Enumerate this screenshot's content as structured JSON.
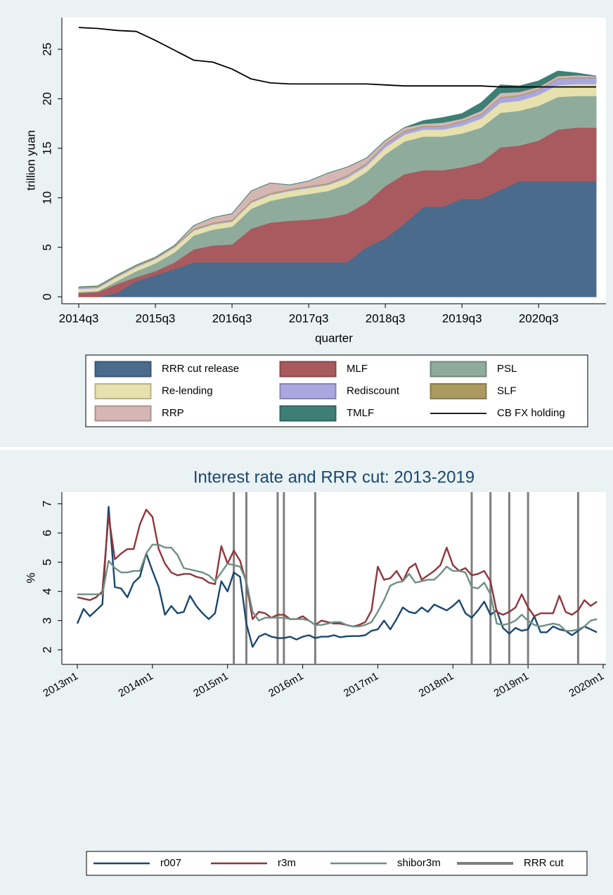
{
  "chart_data": [
    {
      "type": "area",
      "stacked": true,
      "ylabel": "trillion yuan",
      "xlabel": "quarter",
      "x": [
        "2014q3",
        "2014q4",
        "2015q1",
        "2015q2",
        "2015q3",
        "2015q4",
        "2016q1",
        "2016q2",
        "2016q3",
        "2016q4",
        "2017q1",
        "2017q2",
        "2017q3",
        "2017q4",
        "2018q1",
        "2018q2",
        "2018q3",
        "2018q4",
        "2019q1",
        "2019q2",
        "2019q3",
        "2019q4",
        "2020q1",
        "2020q2",
        "2020q3",
        "2020q4",
        "2021q1",
        "2021q2"
      ],
      "xticks": [
        "2014q3",
        "2015q3",
        "2016q3",
        "2017q3",
        "2018q3",
        "2019q3",
        "2020q3"
      ],
      "ylim": [
        -0.7,
        28.2
      ],
      "yticks": [
        0,
        5,
        10,
        15,
        20,
        25
      ],
      "grid": false,
      "legend": "bottom",
      "legend_columns": 3,
      "series": [
        {
          "name": "RRR cut release",
          "color": "#4a6b8c",
          "values": [
            0,
            0,
            0.4,
            1.6,
            2.2,
            2.8,
            3.5,
            3.5,
            3.5,
            3.5,
            3.5,
            3.5,
            3.5,
            3.5,
            3.5,
            5.0,
            5.9,
            7.4,
            9.1,
            9.1,
            9.9,
            9.9,
            10.8,
            11.7,
            11.7,
            11.7,
            11.7,
            11.7
          ]
        },
        {
          "name": "MLF",
          "color": "#a85a5e",
          "values": [
            0.4,
            0.5,
            0.9,
            0.4,
            0.4,
            0.7,
            1.3,
            1.7,
            1.8,
            3.4,
            4.0,
            4.2,
            4.3,
            4.5,
            4.9,
            4.5,
            5.3,
            5.0,
            3.7,
            3.7,
            3.2,
            3.7,
            4.3,
            3.6,
            4.1,
            5.2,
            5.4,
            5.4
          ]
        },
        {
          "name": "PSL",
          "color": "#8fab9c",
          "values": [
            0.1,
            0.1,
            0.3,
            0.6,
            0.8,
            1.0,
            1.4,
            1.6,
            1.8,
            2.0,
            2.2,
            2.4,
            2.6,
            2.7,
            3.0,
            3.1,
            3.2,
            3.3,
            3.4,
            3.4,
            3.4,
            3.5,
            3.5,
            3.5,
            3.5,
            3.3,
            3.2,
            3.2
          ]
        },
        {
          "name": "Re-lending",
          "color": "#e6e1ad",
          "values": [
            0.3,
            0.3,
            0.4,
            0.4,
            0.4,
            0.5,
            0.5,
            0.5,
            0.5,
            0.6,
            0.6,
            0.6,
            0.6,
            0.6,
            0.6,
            0.6,
            0.7,
            0.7,
            0.7,
            0.7,
            0.8,
            0.9,
            1.0,
            1.0,
            1.1,
            1.2,
            1.2,
            1.2
          ]
        },
        {
          "name": "Rediscount",
          "color": "#aaa6e0",
          "values": [
            0.1,
            0.1,
            0.1,
            0.1,
            0.1,
            0.1,
            0.1,
            0.1,
            0.1,
            0.1,
            0.1,
            0.1,
            0.1,
            0.1,
            0.2,
            0.2,
            0.3,
            0.3,
            0.3,
            0.3,
            0.4,
            0.4,
            0.5,
            0.5,
            0.5,
            0.6,
            0.6,
            0.6
          ]
        },
        {
          "name": "SLF",
          "color": "#ab9b60",
          "values": [
            0.1,
            0.1,
            0.1,
            0.1,
            0.1,
            0.1,
            0.1,
            0.1,
            0.1,
            0.1,
            0.1,
            0.1,
            0.1,
            0.1,
            0.1,
            0.1,
            0.1,
            0.1,
            0.1,
            0.1,
            0.1,
            0.1,
            0.1,
            0.1,
            0.1,
            0.1,
            0.1,
            0.1
          ]
        },
        {
          "name": "RRP",
          "color": "#d5b6b2",
          "values": [
            0,
            0,
            0,
            0,
            0,
            0,
            0.3,
            0.5,
            0.6,
            1.0,
            1.0,
            0.4,
            0.5,
            1.0,
            0.8,
            0.5,
            0.3,
            0.3,
            0.2,
            0.3,
            0.2,
            0.3,
            0.4,
            0.3,
            0.2,
            0.2,
            0.2,
            0.1
          ]
        },
        {
          "name": "TMLF",
          "color": "#3d7f75",
          "values": [
            0,
            0,
            0,
            0,
            0,
            0,
            0,
            0,
            0,
            0,
            0,
            0,
            0,
            0,
            0,
            0,
            0,
            0,
            0.3,
            0.5,
            0.5,
            0.8,
            0.8,
            0.6,
            0.6,
            0.5,
            0.2,
            0
          ]
        },
        {
          "name": "CB FX holding",
          "type": "line",
          "color": "#000000",
          "values": [
            27.2,
            27.1,
            26.9,
            26.8,
            25.9,
            24.9,
            23.9,
            23.7,
            23.0,
            22.0,
            21.6,
            21.5,
            21.5,
            21.5,
            21.5,
            21.5,
            21.4,
            21.3,
            21.3,
            21.3,
            21.3,
            21.3,
            21.2,
            21.2,
            21.2,
            21.2,
            21.2,
            21.2
          ]
        }
      ]
    },
    {
      "type": "line",
      "title": "Interest rate and RRR cut: 2013-2019",
      "ylabel": "%",
      "x": [
        "2013m1",
        "2013m2",
        "2013m3",
        "2013m4",
        "2013m5",
        "2013m6",
        "2013m7",
        "2013m8",
        "2013m9",
        "2013m10",
        "2013m11",
        "2013m12",
        "2014m1",
        "2014m2",
        "2014m3",
        "2014m4",
        "2014m5",
        "2014m6",
        "2014m7",
        "2014m8",
        "2014m9",
        "2014m10",
        "2014m11",
        "2014m12",
        "2015m1",
        "2015m2",
        "2015m3",
        "2015m4",
        "2015m5",
        "2015m6",
        "2015m7",
        "2015m8",
        "2015m9",
        "2015m10",
        "2015m11",
        "2015m12",
        "2016m1",
        "2016m2",
        "2016m3",
        "2016m4",
        "2016m5",
        "2016m6",
        "2016m7",
        "2016m8",
        "2016m9",
        "2016m10",
        "2016m11",
        "2016m12",
        "2017m1",
        "2017m2",
        "2017m3",
        "2017m4",
        "2017m5",
        "2017m6",
        "2017m7",
        "2017m8",
        "2017m9",
        "2017m10",
        "2017m11",
        "2017m12",
        "2018m1",
        "2018m2",
        "2018m3",
        "2018m4",
        "2018m5",
        "2018m6",
        "2018m7",
        "2018m8",
        "2018m9",
        "2018m10",
        "2018m11",
        "2018m12",
        "2019m1",
        "2019m2",
        "2019m3",
        "2019m4",
        "2019m5",
        "2019m6",
        "2019m7",
        "2019m8",
        "2019m9",
        "2019m10",
        "2019m11",
        "2019m12"
      ],
      "xticks": [
        "2013m1",
        "2014m1",
        "2015m1",
        "2016m1",
        "2017m1",
        "2018m1",
        "2019m1",
        "2020m1"
      ],
      "ylim": [
        1.5,
        7.4
      ],
      "yticks": [
        2,
        3,
        4,
        5,
        6,
        7
      ],
      "grid": false,
      "legend": "bottom",
      "legend_columns": 4,
      "series": [
        {
          "name": "r007",
          "color": "#1a476f",
          "values": [
            2.9,
            3.4,
            3.15,
            3.35,
            3.55,
            6.9,
            4.15,
            4.1,
            3.8,
            4.3,
            4.5,
            5.3,
            4.7,
            4.15,
            3.2,
            3.5,
            3.25,
            3.3,
            3.85,
            3.5,
            3.25,
            3.05,
            3.25,
            4.35,
            4.0,
            4.65,
            4.5,
            2.9,
            2.1,
            2.45,
            2.55,
            2.45,
            2.4,
            2.4,
            2.45,
            2.35,
            2.45,
            2.5,
            2.4,
            2.45,
            2.45,
            2.5,
            2.43,
            2.46,
            2.47,
            2.47,
            2.5,
            2.65,
            2.7,
            3.0,
            2.7,
            3.05,
            3.45,
            3.3,
            3.25,
            3.45,
            3.3,
            3.55,
            3.45,
            3.35,
            3.5,
            3.7,
            3.25,
            3.1,
            3.35,
            3.65,
            3.2,
            3.35,
            2.75,
            2.55,
            2.75,
            2.65,
            2.7,
            3.15,
            2.6,
            2.6,
            2.8,
            2.7,
            2.65,
            2.5,
            2.65,
            2.8,
            2.7,
            2.6
          ]
        },
        {
          "name": "r3m",
          "color": "#90353b",
          "values": [
            3.8,
            3.75,
            3.7,
            3.8,
            4.0,
            6.6,
            5.1,
            5.3,
            5.45,
            5.45,
            6.3,
            6.8,
            6.55,
            5.45,
            4.95,
            4.65,
            4.55,
            4.6,
            4.6,
            4.5,
            4.45,
            4.3,
            4.25,
            5.55,
            4.95,
            5.4,
            5.05,
            4.3,
            3.05,
            3.3,
            3.25,
            3.1,
            3.2,
            3.2,
            3.05,
            3.05,
            3.15,
            3.0,
            2.85,
            3.0,
            2.95,
            2.9,
            2.9,
            2.85,
            2.8,
            2.85,
            2.95,
            3.35,
            4.85,
            4.4,
            4.45,
            4.7,
            4.35,
            4.8,
            4.95,
            4.4,
            4.55,
            4.7,
            4.9,
            5.5,
            4.9,
            4.7,
            4.8,
            4.55,
            4.6,
            4.7,
            4.35,
            3.3,
            3.2,
            3.3,
            3.45,
            3.9,
            3.45,
            3.15,
            3.25,
            3.25,
            3.25,
            3.85,
            3.3,
            3.2,
            3.35,
            3.7,
            3.5,
            3.65
          ]
        },
        {
          "name": "shibor3m",
          "color": "#6f8f84",
          "values": [
            3.9,
            3.9,
            3.9,
            3.9,
            3.9,
            5.05,
            4.8,
            4.65,
            4.65,
            4.7,
            4.7,
            5.3,
            5.6,
            5.6,
            5.5,
            5.5,
            5.25,
            4.8,
            4.75,
            4.7,
            4.65,
            4.55,
            4.35,
            4.65,
            4.95,
            4.9,
            4.85,
            4.35,
            3.3,
            3.0,
            3.1,
            3.1,
            3.1,
            3.1,
            3.05,
            3.05,
            3.05,
            3.0,
            2.85,
            2.85,
            2.9,
            2.95,
            2.95,
            2.85,
            2.8,
            2.8,
            2.85,
            2.95,
            3.3,
            3.7,
            4.2,
            4.3,
            4.35,
            4.6,
            4.3,
            4.35,
            4.4,
            4.4,
            4.6,
            4.85,
            4.7,
            4.7,
            4.65,
            4.15,
            4.1,
            4.3,
            3.9,
            2.9,
            2.85,
            2.9,
            3.0,
            3.2,
            3.0,
            2.85,
            2.8,
            2.85,
            2.9,
            2.85,
            2.65,
            2.65,
            2.7,
            2.8,
            3.0,
            3.05
          ]
        },
        {
          "name": "RRR cut",
          "type": "vline",
          "color": "#7f7f7f",
          "x": [
            "2015m2",
            "2015m4",
            "2015m9",
            "2015m10",
            "2016m3",
            "2018m4",
            "2018m7",
            "2018m10",
            "2019m1",
            "2019m9"
          ]
        }
      ]
    }
  ]
}
